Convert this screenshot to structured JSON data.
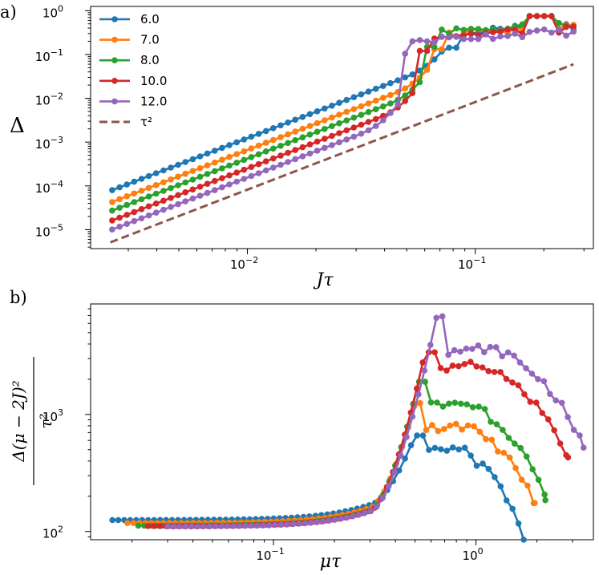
{
  "chart_data": [
    {
      "type": "line",
      "panel_label": "a)",
      "xlabel": "Jτ",
      "ylabel": "Δ",
      "xscale": "log",
      "yscale": "log",
      "xlim": [
        0.00205,
        0.33
      ],
      "ylim": [
        3.7e-06,
        1.25
      ],
      "x_ticks": [
        {
          "value": 0.01,
          "base": "10",
          "exp": "−2"
        },
        {
          "value": 0.1,
          "base": "10",
          "exp": "−1"
        }
      ],
      "y_ticks": [
        {
          "value": 1e-05,
          "base": "10",
          "exp": "−5"
        },
        {
          "value": 0.0001,
          "base": "10",
          "exp": "−4"
        },
        {
          "value": 0.001,
          "base": "10",
          "exp": "−3"
        },
        {
          "value": 0.01,
          "base": "10",
          "exp": "−2"
        },
        {
          "value": 0.1,
          "base": "10",
          "exp": "−1"
        },
        {
          "value": 1,
          "base": "10",
          "exp": "0"
        }
      ],
      "legend": {
        "placement": "top-left",
        "entries": [
          "6.0",
          "7.0",
          "8.0",
          "10.0",
          "12.0",
          "τ²"
        ]
      },
      "series": [
        {
          "name": "6.0",
          "color": "#1f77b4",
          "slope_prefactor": 12.3,
          "jump_x": 0.078,
          "jump_high": 0.26
        },
        {
          "name": "7.0",
          "color": "#ff7f0e",
          "slope_prefactor": 6.6,
          "jump_x": 0.068,
          "jump_high": 0.24
        },
        {
          "name": "8.0",
          "color": "#2ca02c",
          "slope_prefactor": 4.2,
          "jump_x": 0.064,
          "jump_high": 0.27
        },
        {
          "name": "10.0",
          "color": "#d62728",
          "slope_prefactor": 2.5,
          "jump_x": 0.058,
          "jump_high": 0.22
        },
        {
          "name": "12.0",
          "color": "#9467bd",
          "slope_prefactor": 1.55,
          "jump_x": 0.048,
          "jump_high": 0.19
        }
      ],
      "reference_line": {
        "name": "τ²",
        "color": "#8c564b",
        "style": "dashed",
        "x_range": [
          0.0025,
          0.27
        ],
        "prefactor": 0.82
      }
    },
    {
      "type": "line",
      "panel_label": "b)",
      "xlabel": "μτ",
      "ylabel": "Δ(μ−2J)² / τ²",
      "xscale": "log",
      "yscale": "log",
      "xlim": [
        0.0125,
        3.8
      ],
      "ylim": [
        85,
        8800
      ],
      "x_ticks": [
        {
          "value": 0.1,
          "base": "10",
          "exp": "−1"
        },
        {
          "value": 1,
          "base": "10",
          "exp": "0"
        }
      ],
      "y_ticks": [
        {
          "value": 100,
          "base": "10",
          "exp": "2"
        },
        {
          "value": 1000,
          "base": "10",
          "exp": "3"
        }
      ],
      "series": [
        {
          "name": "6.0",
          "color": "#1f77b4",
          "x_start": 0.016,
          "low": 125,
          "peak_x": 0.5,
          "peak": 660,
          "plateau": 490,
          "x_end": 1.72,
          "end": 85
        },
        {
          "name": "7.0",
          "color": "#ff7f0e",
          "x_start": 0.019,
          "low": 118,
          "peak_x": 0.5,
          "peak": 1250,
          "plateau": 780,
          "x_end": 1.95,
          "end": 175
        },
        {
          "name": "8.0",
          "color": "#2ca02c",
          "x_start": 0.0215,
          "low": 112,
          "peak_x": 0.52,
          "peak": 1900,
          "plateau": 1200,
          "x_end": 2.2,
          "end": 185
        },
        {
          "name": "10.0",
          "color": "#d62728",
          "x_start": 0.024,
          "low": 111,
          "peak_x": 0.56,
          "peak": 3400,
          "plateau": 2500,
          "x_end": 2.85,
          "end": 430
        },
        {
          "name": "12.0",
          "color": "#9467bd",
          "x_start": 0.03,
          "low": 110,
          "peak_x": 0.64,
          "peak": 6900,
          "plateau": 3500,
          "x_end": 3.4,
          "end": 520
        }
      ]
    }
  ]
}
